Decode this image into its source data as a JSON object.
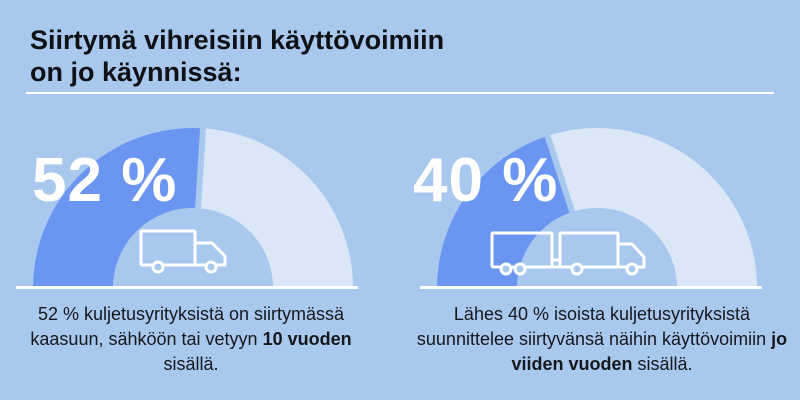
{
  "title": {
    "line1": "Siirtymä vihreisiin käyttövoimiin",
    "line2": "on jo käynnissä:"
  },
  "stats": [
    {
      "percent_label": "52 %",
      "percent_value": 52,
      "caption_pre": "52 % kuljetusyrityksistä on siirtymässä kaasuun, sähköön tai vetyyn ",
      "caption_bold": "10 vuoden",
      "caption_post": " sisällä.",
      "icon": "truck-icon"
    },
    {
      "percent_label": "40 %",
      "percent_value": 40,
      "caption_pre": "Lähes 40 % isoista kuljetusyrityksistä suunnittelee siirtyvänsä näihin käyttövoimiin ",
      "caption_bold": "jo viiden vuoden",
      "caption_post": " sisällä.",
      "icon": "truck-trailer-icon"
    }
  ],
  "colors": {
    "background": "#a9c8ee",
    "filled": "#6a95f0",
    "remaining": "#dbe7f7",
    "inner": "#a9c8ee",
    "text": "#111418",
    "white": "#ffffff"
  }
}
